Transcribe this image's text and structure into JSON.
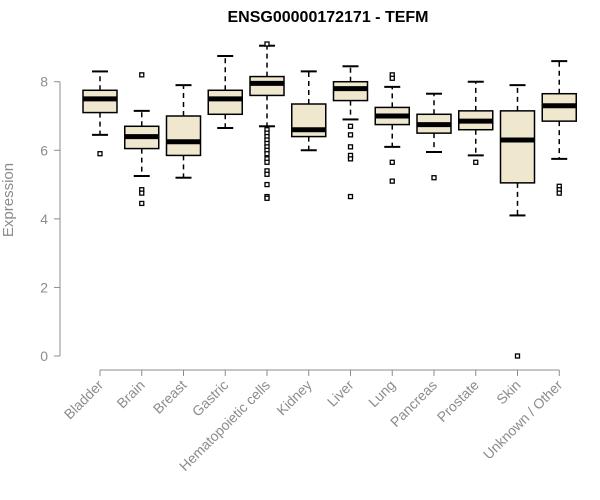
{
  "chart_data": {
    "type": "box",
    "title": "ENSG00000172171 - TEFM",
    "xlabel": "",
    "ylabel": "Expression",
    "ylim": [
      0,
      9.1
    ],
    "yticks": [
      0,
      2,
      4,
      6,
      8
    ],
    "box_fill": "#efe8cf",
    "box_stroke": "#000000",
    "median_color": "#000000",
    "axis_color": "#8c8c8c",
    "categories": [
      "Bladder",
      "Brain",
      "Breast",
      "Gastric",
      "Hematopoietic cells",
      "Kidney",
      "Liver",
      "Lung",
      "Pancreas",
      "Prostate",
      "Skin",
      "Unknown / Other"
    ],
    "boxes": [
      {
        "category": "Bladder",
        "whisker_low": 6.45,
        "q1": 7.1,
        "median": 7.5,
        "q3": 7.75,
        "whisker_high": 8.3,
        "outliers": [
          5.9
        ]
      },
      {
        "category": "Brain",
        "whisker_low": 5.25,
        "q1": 6.05,
        "median": 6.4,
        "q3": 6.7,
        "whisker_high": 7.15,
        "outliers": [
          8.2,
          4.85,
          4.75,
          4.45
        ]
      },
      {
        "category": "Breast",
        "whisker_low": 5.2,
        "q1": 5.85,
        "median": 6.25,
        "q3": 7.0,
        "whisker_high": 7.9,
        "outliers": []
      },
      {
        "category": "Gastric",
        "whisker_low": 6.65,
        "q1": 7.05,
        "median": 7.5,
        "q3": 7.75,
        "whisker_high": 8.75,
        "outliers": []
      },
      {
        "category": "Hematopoietic cells",
        "whisker_low": 6.7,
        "q1": 7.6,
        "median": 7.95,
        "q3": 8.15,
        "whisker_high": 9.05,
        "outliers": [
          9.1,
          6.6,
          6.5,
          6.4,
          6.3,
          6.2,
          6.1,
          6.0,
          5.9,
          5.75,
          5.65,
          5.4,
          5.3,
          5.0,
          4.65,
          4.6
        ]
      },
      {
        "category": "Kidney",
        "whisker_low": 6.0,
        "q1": 6.4,
        "median": 6.6,
        "q3": 7.35,
        "whisker_high": 8.3,
        "outliers": []
      },
      {
        "category": "Liver",
        "whisker_low": 6.9,
        "q1": 7.45,
        "median": 7.8,
        "q3": 8.0,
        "whisker_high": 8.45,
        "outliers": [
          6.7,
          6.45,
          6.1,
          5.85,
          5.75,
          4.65
        ]
      },
      {
        "category": "Lung",
        "whisker_low": 6.1,
        "q1": 6.75,
        "median": 7.0,
        "q3": 7.25,
        "whisker_high": 7.85,
        "outliers": [
          8.2,
          8.1,
          5.65,
          5.1
        ]
      },
      {
        "category": "Pancreas",
        "whisker_low": 5.95,
        "q1": 6.5,
        "median": 6.75,
        "q3": 7.05,
        "whisker_high": 7.65,
        "outliers": [
          5.2
        ]
      },
      {
        "category": "Prostate",
        "whisker_low": 5.85,
        "q1": 6.6,
        "median": 6.85,
        "q3": 7.15,
        "whisker_high": 8.0,
        "outliers": [
          5.65
        ]
      },
      {
        "category": "Skin",
        "whisker_low": 4.1,
        "q1": 5.05,
        "median": 6.3,
        "q3": 7.15,
        "whisker_high": 7.9,
        "outliers": [
          0.0
        ]
      },
      {
        "category": "Unknown / Other",
        "whisker_low": 5.75,
        "q1": 6.85,
        "median": 7.3,
        "q3": 7.65,
        "whisker_high": 8.6,
        "outliers": [
          4.95,
          4.85,
          4.75
        ]
      }
    ]
  }
}
